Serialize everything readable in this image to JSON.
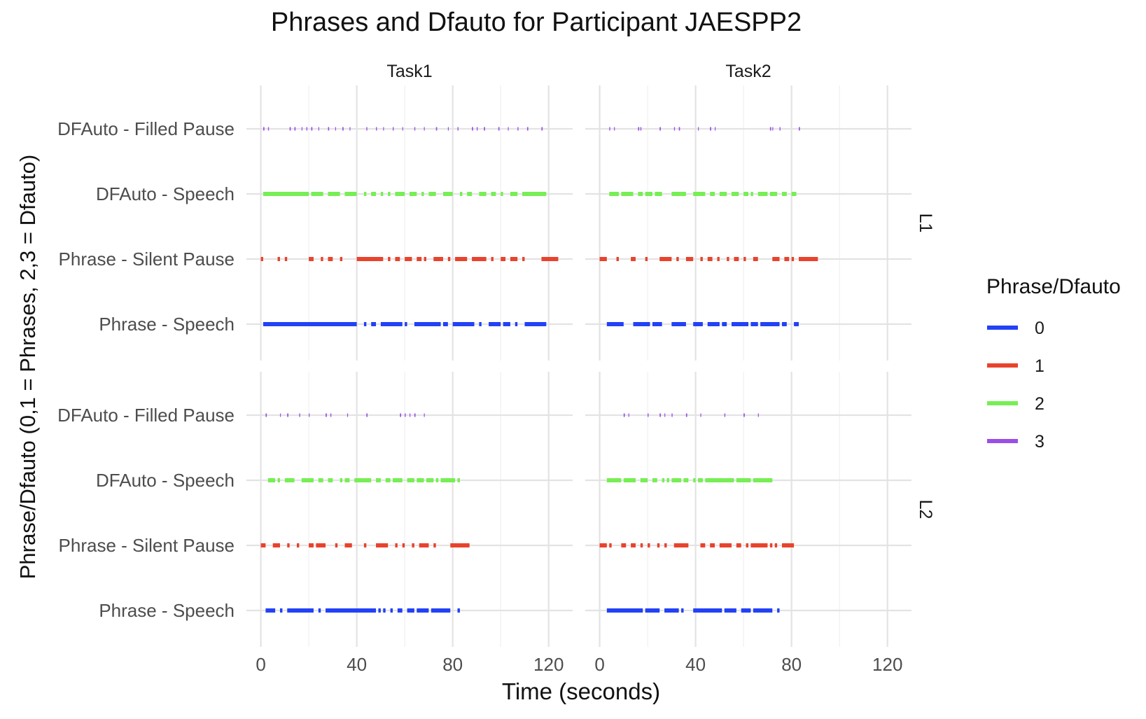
{
  "chart_data": {
    "type": "timeline",
    "title": "Phrases and Dfauto for Participant JAESPP2",
    "xlabel": "Time (seconds)",
    "ylabel": "Phrase/Dfauto (0,1 = Phrases, 2,3 = Dfauto)",
    "xlim": [
      -6,
      130
    ],
    "x_ticks": [
      "0",
      "40",
      "80",
      "120"
    ],
    "x_tick_values": [
      0,
      40,
      80,
      120
    ],
    "grid": true,
    "legend_position": "right",
    "legend_title": "Phrase/Dfauto",
    "legend": [
      {
        "label": "0",
        "color": "#2341f5"
      },
      {
        "label": "1",
        "color": "#e8432d"
      },
      {
        "label": "2",
        "color": "#77ee55"
      },
      {
        "label": "3",
        "color": "#9b4fe6"
      }
    ],
    "rows": [
      "DFAuto - Filled Pause",
      "DFAuto - Speech",
      "Phrase - Silent Pause",
      "Phrase - Speech"
    ],
    "columns": [
      "Task1",
      "Task2"
    ],
    "facet_rows": [
      "L1",
      "L2"
    ],
    "panels": [
      {
        "column": "Task1",
        "facet": "L1",
        "series": {
          "3": [
            [
              1,
              1.5
            ],
            [
              3,
              3.4
            ],
            [
              12,
              12.5
            ],
            [
              14,
              14.5
            ],
            [
              17,
              17.3
            ],
            [
              19,
              19.4
            ],
            [
              21,
              21.5
            ],
            [
              24,
              24.3
            ],
            [
              28,
              28.5
            ],
            [
              31,
              31.3
            ],
            [
              34,
              34.5
            ],
            [
              37,
              37.3
            ],
            [
              44,
              44.4
            ],
            [
              48,
              48.4
            ],
            [
              51,
              51.3
            ],
            [
              55,
              55.4
            ],
            [
              59,
              59.3
            ],
            [
              64,
              64.4
            ],
            [
              68,
              68.3
            ],
            [
              73,
              73.5
            ],
            [
              78,
              78.3
            ],
            [
              82,
              82.4
            ],
            [
              88,
              88.5
            ],
            [
              90,
              90.4
            ],
            [
              93,
              93.5
            ],
            [
              99,
              99.5
            ],
            [
              103,
              103.3
            ],
            [
              107,
              107.4
            ],
            [
              111,
              111.5
            ],
            [
              117,
              117.5
            ]
          ],
          "2": [
            [
              1,
              20
            ],
            [
              21,
              26
            ],
            [
              28,
              33
            ],
            [
              35,
              40
            ],
            [
              43,
              44
            ],
            [
              46,
              48
            ],
            [
              50,
              51
            ],
            [
              53,
              54
            ],
            [
              56,
              60
            ],
            [
              62,
              65
            ],
            [
              67,
              68
            ],
            [
              70,
              73
            ],
            [
              76,
              80
            ],
            [
              83,
              84
            ],
            [
              86,
              88
            ],
            [
              91,
              94
            ],
            [
              96,
              98
            ],
            [
              100,
              101
            ],
            [
              104,
              107
            ],
            [
              109,
              119
            ]
          ],
          "1": [
            [
              0,
              1
            ],
            [
              7,
              8
            ],
            [
              10,
              11
            ],
            [
              20,
              22
            ],
            [
              25,
              26
            ],
            [
              28,
              30
            ],
            [
              33,
              34
            ],
            [
              40,
              51
            ],
            [
              53,
              54
            ],
            [
              56,
              58
            ],
            [
              60,
              63
            ],
            [
              65,
              67
            ],
            [
              68,
              69
            ],
            [
              72,
              76
            ],
            [
              78,
              79
            ],
            [
              81,
              86
            ],
            [
              88,
              94
            ],
            [
              96,
              97
            ],
            [
              100,
              102
            ],
            [
              104,
              107
            ],
            [
              109,
              110
            ],
            [
              117,
              124
            ]
          ],
          "0": [
            [
              1,
              40
            ],
            [
              43,
              44
            ],
            [
              46,
              48
            ],
            [
              50,
              59
            ],
            [
              60,
              61
            ],
            [
              64,
              75
            ],
            [
              76,
              78
            ],
            [
              80,
              89
            ],
            [
              91,
              92
            ],
            [
              95,
              100
            ],
            [
              101,
              104
            ],
            [
              106,
              107
            ],
            [
              110,
              119
            ]
          ]
        }
      },
      {
        "column": "Task2",
        "facet": "L1",
        "series": {
          "3": [
            [
              4,
              4.4
            ],
            [
              6,
              6.3
            ],
            [
              16,
              16.5
            ],
            [
              17,
              17.4
            ],
            [
              25,
              25.5
            ],
            [
              31,
              31.4
            ],
            [
              33,
              33.5
            ],
            [
              41,
              41.3
            ],
            [
              46,
              46.5
            ],
            [
              48,
              48.3
            ],
            [
              71,
              71.5
            ],
            [
              72,
              72.3
            ],
            [
              75,
              75.4
            ],
            [
              83,
              83.5
            ]
          ],
          "2": [
            [
              4,
              8
            ],
            [
              9,
              14
            ],
            [
              16,
              18
            ],
            [
              19,
              22
            ],
            [
              23,
              26
            ],
            [
              30,
              36
            ],
            [
              39,
              44
            ],
            [
              46,
              48
            ],
            [
              50,
              53
            ],
            [
              55,
              58
            ],
            [
              60,
              62
            ],
            [
              63,
              64
            ],
            [
              66,
              70
            ],
            [
              71,
              74
            ],
            [
              76,
              78
            ],
            [
              80,
              82
            ]
          ],
          "1": [
            [
              0,
              3
            ],
            [
              7,
              8
            ],
            [
              13,
              15
            ],
            [
              19,
              20
            ],
            [
              25,
              30
            ],
            [
              32,
              33
            ],
            [
              36,
              39
            ],
            [
              42,
              43
            ],
            [
              45,
              47
            ],
            [
              49,
              50
            ],
            [
              53,
              54
            ],
            [
              56,
              58
            ],
            [
              60,
              61
            ],
            [
              64,
              66
            ],
            [
              72,
              75
            ],
            [
              77,
              79
            ],
            [
              80,
              81
            ],
            [
              83,
              91
            ]
          ],
          "0": [
            [
              3,
              10
            ],
            [
              14,
              21
            ],
            [
              22,
              26
            ],
            [
              30,
              36
            ],
            [
              39,
              43
            ],
            [
              45,
              50
            ],
            [
              51,
              53
            ],
            [
              55,
              62
            ],
            [
              63,
              66
            ],
            [
              67,
              75
            ],
            [
              76,
              78
            ],
            [
              81,
              83
            ]
          ]
        }
      },
      {
        "column": "Task1",
        "facet": "L2",
        "series": {
          "3": [
            [
              2,
              2.5
            ],
            [
              8,
              8.3
            ],
            [
              11,
              11.5
            ],
            [
              16,
              16.4
            ],
            [
              20,
              20.3
            ],
            [
              27,
              27.5
            ],
            [
              29,
              29.4
            ],
            [
              36,
              36.3
            ],
            [
              44,
              44.5
            ],
            [
              58,
              58.5
            ],
            [
              60,
              60.4
            ],
            [
              62,
              62.3
            ],
            [
              64,
              64.5
            ],
            [
              68,
              68.3
            ]
          ],
          "2": [
            [
              3,
              6
            ],
            [
              7,
              8
            ],
            [
              10,
              14
            ],
            [
              17,
              22
            ],
            [
              24,
              26
            ],
            [
              28,
              30
            ],
            [
              33,
              34
            ],
            [
              35,
              37
            ],
            [
              39,
              46
            ],
            [
              48,
              50
            ],
            [
              52,
              54
            ],
            [
              55,
              59
            ],
            [
              61,
              64
            ],
            [
              65,
              68
            ],
            [
              69,
              72
            ],
            [
              73,
              74
            ],
            [
              75,
              81
            ],
            [
              82,
              83
            ]
          ],
          "1": [
            [
              0,
              2
            ],
            [
              5,
              8
            ],
            [
              11,
              12
            ],
            [
              15,
              16
            ],
            [
              20,
              22
            ],
            [
              23,
              27
            ],
            [
              31,
              32
            ],
            [
              35,
              38
            ],
            [
              43,
              44
            ],
            [
              48,
              53
            ],
            [
              56,
              57
            ],
            [
              59,
              60
            ],
            [
              63,
              64
            ],
            [
              66,
              70
            ],
            [
              72,
              73
            ],
            [
              79,
              87
            ]
          ],
          "0": [
            [
              2,
              6
            ],
            [
              8,
              9
            ],
            [
              11,
              22
            ],
            [
              24,
              25
            ],
            [
              27,
              48
            ],
            [
              49,
              50
            ],
            [
              51,
              52
            ],
            [
              54,
              55
            ],
            [
              57,
              59
            ],
            [
              61,
              64
            ],
            [
              65,
              70
            ],
            [
              71,
              79
            ],
            [
              82,
              83
            ]
          ]
        }
      },
      {
        "column": "Task2",
        "facet": "L2",
        "series": {
          "3": [
            [
              10,
              10.5
            ],
            [
              12,
              12.3
            ],
            [
              20,
              20.4
            ],
            [
              25,
              25.5
            ],
            [
              27,
              27.3
            ],
            [
              30,
              30.4
            ],
            [
              36,
              36.5
            ],
            [
              42,
              42.3
            ],
            [
              52,
              52.4
            ],
            [
              60,
              60.5
            ],
            [
              66,
              66.3
            ]
          ],
          "2": [
            [
              3,
              9
            ],
            [
              10,
              15
            ],
            [
              17,
              20
            ],
            [
              22,
              24
            ],
            [
              26,
              27
            ],
            [
              28,
              29
            ],
            [
              30,
              34
            ],
            [
              35,
              37
            ],
            [
              39,
              40
            ],
            [
              41,
              43
            ],
            [
              44,
              56
            ],
            [
              57,
              63
            ],
            [
              64,
              72
            ]
          ],
          "1": [
            [
              0,
              3
            ],
            [
              4,
              5
            ],
            [
              9,
              11
            ],
            [
              13,
              15
            ],
            [
              17,
              18
            ],
            [
              20,
              21
            ],
            [
              24,
              25
            ],
            [
              27,
              28
            ],
            [
              31,
              37
            ],
            [
              42,
              44
            ],
            [
              46,
              48
            ],
            [
              50,
              55
            ],
            [
              57,
              59
            ],
            [
              61,
              62
            ],
            [
              63,
              70
            ],
            [
              71,
              72
            ],
            [
              73,
              74
            ],
            [
              76,
              81
            ]
          ],
          "0": [
            [
              3,
              18
            ],
            [
              19,
              25
            ],
            [
              27,
              33
            ],
            [
              34,
              35
            ],
            [
              39,
              51
            ],
            [
              52,
              57
            ],
            [
              59,
              63
            ],
            [
              64,
              72
            ],
            [
              74,
              75
            ]
          ]
        }
      }
    ]
  }
}
